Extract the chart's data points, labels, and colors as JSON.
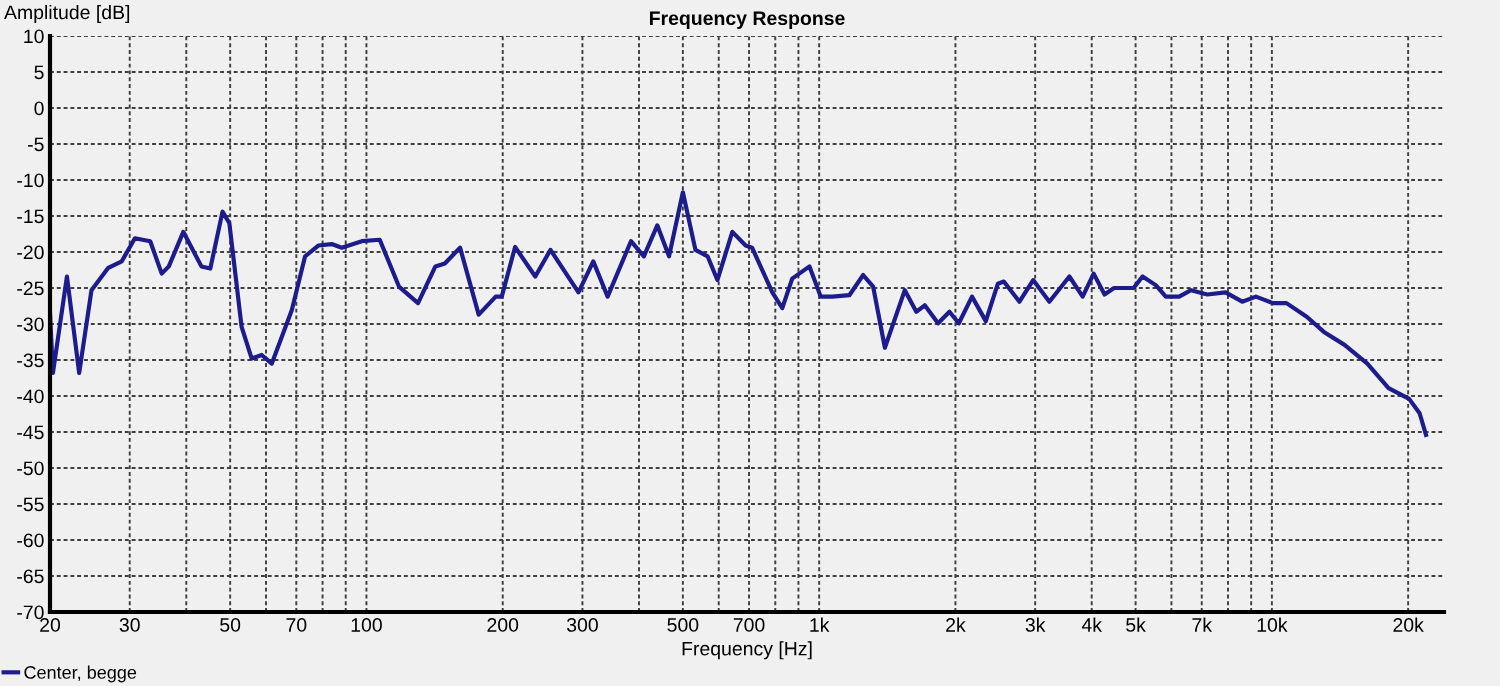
{
  "chart_data": {
    "type": "line",
    "title": "Frequency Response",
    "xlabel": "Frequency [Hz]",
    "ylabel": "Amplitude [dB]",
    "log": "x",
    "grid": true,
    "legend": "bottom left",
    "line_style": "solid",
    "marker": "none",
    "xlim": [
      20,
      24000
    ],
    "ylim": [
      -70,
      10
    ],
    "xticks": [
      20,
      30,
      {
        "value": 40,
        "label": null
      },
      50,
      {
        "value": 60,
        "label": null
      },
      70,
      {
        "value": 80,
        "label": null
      },
      {
        "value": 90,
        "label": null
      },
      100,
      200,
      300,
      {
        "value": 400,
        "label": null
      },
      500,
      {
        "value": 600,
        "label": null
      },
      700,
      {
        "value": 800,
        "label": null
      },
      {
        "value": 900,
        "label": null
      },
      {
        "value": 1000,
        "label": "1k"
      },
      {
        "value": 2000,
        "label": "2k"
      },
      {
        "value": 3000,
        "label": "3k"
      },
      {
        "value": 4000,
        "label": "4k"
      },
      {
        "value": 5000,
        "label": "5k"
      },
      {
        "value": 6000,
        "label": null
      },
      {
        "value": 7000,
        "label": "7k"
      },
      {
        "value": 8000,
        "label": null
      },
      {
        "value": 9000,
        "label": null
      },
      {
        "value": 10000,
        "label": "10k"
      },
      {
        "value": 20000,
        "label": "20k"
      }
    ],
    "yticks": [
      -70,
      -65,
      -60,
      -55,
      -50,
      -45,
      -40,
      -35,
      -30,
      -25,
      -20,
      -15,
      -10,
      -5,
      0,
      5,
      10
    ],
    "series": [
      {
        "name": "Center, begge",
        "color": "#1c1c8c",
        "x": [
          20,
          20.3,
          21.8,
          23.2,
          24.7,
          26.9,
          28.8,
          30.8,
          33.3,
          35.3,
          36.6,
          39.4,
          43.2,
          45.2,
          48.1,
          49.8,
          53,
          55.8,
          58.7,
          61.8,
          68.4,
          73.2,
          78.3,
          83.8,
          88.2,
          97.7,
          107,
          118,
          130,
          142,
          149,
          161,
          177,
          193,
          199,
          213,
          236,
          255,
          294,
          317,
          341,
          384,
          410,
          439,
          466,
          500,
          533,
          567,
          596,
          643,
          688,
          711,
          788,
          829,
          872,
          952,
          1008,
          1070,
          1166,
          1251,
          1316,
          1397,
          1546,
          1639,
          1711,
          1831,
          1940,
          2035,
          2176,
          2334,
          2482,
          2558,
          2770,
          2970,
          3225,
          3570,
          3820,
          4040,
          4270,
          4480,
          4950,
          5180,
          5540,
          5830,
          6240,
          6630,
          7200,
          7900,
          8600,
          9220,
          10050,
          10770,
          11940,
          13030,
          14470,
          16250,
          18100,
          20100,
          21200,
          21900
        ],
        "values": [
          -28.5,
          -36.8,
          -23.4,
          -36.8,
          -25.3,
          -22.2,
          -21.3,
          -18.1,
          -18.5,
          -23,
          -22,
          -17.2,
          -22,
          -22.3,
          -14.4,
          -16,
          -30.4,
          -34.8,
          -34.3,
          -35.5,
          -28.1,
          -20.6,
          -19.1,
          -18.9,
          -19.4,
          -18.5,
          -18.3,
          -24.8,
          -27.1,
          -22,
          -21.6,
          -19.4,
          -28.7,
          -26.2,
          -26.2,
          -19.3,
          -23.4,
          -19.7,
          -25.6,
          -21.3,
          -26.2,
          -18.5,
          -20.6,
          -16.3,
          -20.6,
          -11.7,
          -19.7,
          -20.6,
          -23.9,
          -17.2,
          -19.1,
          -19.4,
          -25.6,
          -27.8,
          -23.7,
          -22,
          -26.2,
          -26.2,
          -26,
          -23.2,
          -24.8,
          -33.3,
          -25.3,
          -28.3,
          -27.4,
          -29.9,
          -28.3,
          -29.9,
          -26.2,
          -29.6,
          -24.4,
          -24.1,
          -26.9,
          -23.9,
          -26.9,
          -23.4,
          -26.2,
          -23,
          -25.9,
          -25,
          -25,
          -23.4,
          -24.6,
          -26.2,
          -26.2,
          -25.3,
          -25.9,
          -25.6,
          -26.9,
          -26.2,
          -27.1,
          -27.1,
          -29,
          -31.1,
          -32.9,
          -35.5,
          -38.9,
          -40.4,
          -42.4,
          -45.4
        ]
      }
    ]
  }
}
